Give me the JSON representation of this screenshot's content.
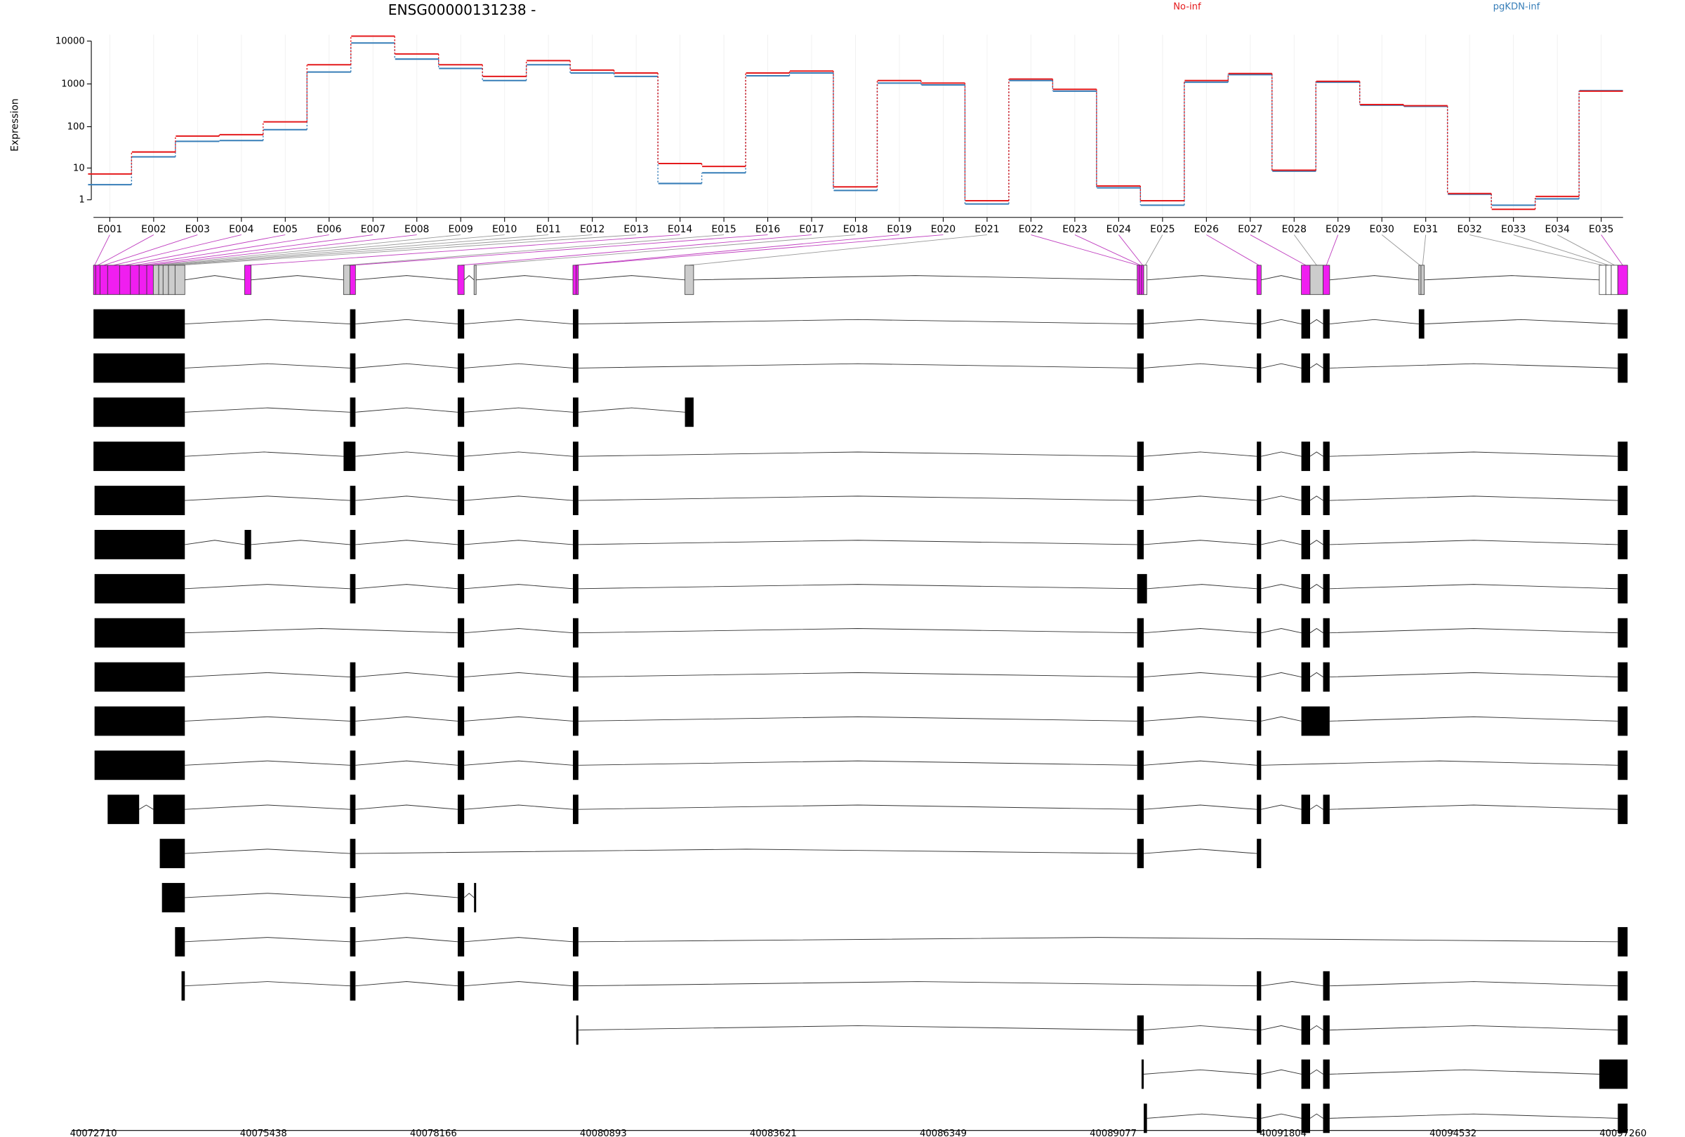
{
  "chart_data": [
    {
      "type": "line",
      "title": "ENSG00000131238 -",
      "ylabel": "Expression",
      "categories": [
        "E001",
        "E002",
        "E003",
        "E004",
        "E005",
        "E006",
        "E007",
        "E008",
        "E009",
        "E010",
        "E011",
        "E012",
        "E013",
        "E014",
        "E015",
        "E016",
        "E017",
        "E018",
        "E019",
        "E020",
        "E021",
        "E022",
        "E023",
        "E024",
        "E025",
        "E026",
        "E027",
        "E028",
        "E029",
        "E030",
        "E031",
        "E032",
        "E033",
        "E034",
        "E035"
      ],
      "series": [
        {
          "name": "No-inf",
          "color": "#e41a1c",
          "values": [
            7,
            25,
            60,
            65,
            130,
            2800,
            13000,
            5000,
            2800,
            1500,
            3500,
            2100,
            1800,
            13,
            11,
            1800,
            2000,
            3,
            1200,
            1050,
            0.9,
            1300,
            750,
            3.2,
            0.9,
            1200,
            1750,
            8.8,
            1150,
            330,
            310,
            1.8,
            0.2,
            1.4,
            680
          ]
        },
        {
          "name": "pgKDN-inf",
          "color": "#377eb8",
          "values": [
            3.5,
            19,
            45,
            47,
            85,
            1900,
            9000,
            3800,
            2300,
            1200,
            2800,
            1800,
            1500,
            3.8,
            7.5,
            1550,
            1800,
            2.3,
            1050,
            950,
            0.6,
            1200,
            680,
            2.8,
            0.5,
            1100,
            1650,
            8.3,
            1100,
            320,
            300,
            1.7,
            0.5,
            1.1,
            700
          ]
        }
      ],
      "ylim": [
        0,
        14000
      ],
      "yticks": [
        1,
        10,
        100,
        1000,
        10000
      ],
      "log": true,
      "log_offset": 1,
      "grid": true,
      "legend": "top"
    },
    {
      "type": "gene-model",
      "xlim": [
        40072710,
        40097260
      ],
      "xticks": [
        40072710,
        40075438,
        40078166,
        40080893,
        40083621,
        40086349,
        40089077,
        40091804,
        40094532,
        40097260
      ],
      "exons": [
        {
          "start": 40072710,
          "end": 40072745,
          "color": "#f01ef0"
        },
        {
          "start": 40072745,
          "end": 40072815,
          "color": "#f01ef0"
        },
        {
          "start": 40072815,
          "end": 40072937,
          "color": "#f01ef0"
        },
        {
          "start": 40072937,
          "end": 40073129,
          "color": "#f01ef0"
        },
        {
          "start": 40073129,
          "end": 40073303,
          "color": "#f01ef0"
        },
        {
          "start": 40073303,
          "end": 40073443,
          "color": "#f01ef0"
        },
        {
          "start": 40073443,
          "end": 40073565,
          "color": "#f01ef0"
        },
        {
          "start": 40073565,
          "end": 40073670,
          "color": "#f01ef0"
        },
        {
          "start": 40073670,
          "end": 40073757,
          "color": "#cccccc"
        },
        {
          "start": 40073757,
          "end": 40073827,
          "color": "#cccccc"
        },
        {
          "start": 40073827,
          "end": 40073914,
          "color": "#cccccc"
        },
        {
          "start": 40073914,
          "end": 40074019,
          "color": "#cccccc"
        },
        {
          "start": 40074019,
          "end": 40074176,
          "color": "#cccccc"
        },
        {
          "start": 40075136,
          "end": 40075240,
          "color": "#f01ef0"
        },
        {
          "start": 40076724,
          "end": 40076828,
          "color": "#cccccc"
        },
        {
          "start": 40076828,
          "end": 40076915,
          "color": "#f01ef0"
        },
        {
          "start": 40078556,
          "end": 40078660,
          "color": "#f01ef0"
        },
        {
          "start": 40078818,
          "end": 40078852,
          "color": "#cccccc"
        },
        {
          "start": 40080405,
          "end": 40080458,
          "color": "#f01ef0"
        },
        {
          "start": 40080458,
          "end": 40080493,
          "color": "#f01ef0"
        },
        {
          "start": 40082203,
          "end": 40082342,
          "color": "#cccccc"
        },
        {
          "start": 40089462,
          "end": 40089497,
          "color": "#f01ef0"
        },
        {
          "start": 40089497,
          "end": 40089532,
          "color": "#f01ef0"
        },
        {
          "start": 40089532,
          "end": 40089567,
          "color": "#f01ef0"
        },
        {
          "start": 40089567,
          "end": 40089619,
          "color": "#ffffff"
        },
        {
          "start": 40091382,
          "end": 40091452,
          "color": "#f01ef0"
        },
        {
          "start": 40092097,
          "end": 40092237,
          "color": "#f01ef0"
        },
        {
          "start": 40092237,
          "end": 40092446,
          "color": "#cccccc"
        },
        {
          "start": 40092446,
          "end": 40092551,
          "color": "#f01ef0"
        },
        {
          "start": 40093982,
          "end": 40094017,
          "color": "#cccccc"
        },
        {
          "start": 40094017,
          "end": 40094070,
          "color": "#cccccc"
        },
        {
          "start": 40096879,
          "end": 40096984,
          "color": "#ffffff"
        },
        {
          "start": 40096984,
          "end": 40097071,
          "color": "#ffffff"
        },
        {
          "start": 40097071,
          "end": 40097176,
          "color": "#ffffff"
        },
        {
          "start": 40097176,
          "end": 40097333,
          "color": "#f01ef0"
        }
      ],
      "transcript_color": "#000000",
      "transcripts": [
        [
          [
            40072710,
            40074176
          ],
          [
            40076828,
            40076915
          ],
          [
            40078556,
            40078660
          ],
          [
            40080405,
            40080493
          ],
          [
            40089462,
            40089567
          ],
          [
            40091382,
            40091452
          ],
          [
            40092097,
            40092237
          ],
          [
            40092446,
            40092551
          ],
          [
            40093982,
            40094070
          ],
          [
            40097176,
            40097333
          ]
        ],
        [
          [
            40072710,
            40074176
          ],
          [
            40076828,
            40076915
          ],
          [
            40078556,
            40078660
          ],
          [
            40080405,
            40080493
          ],
          [
            40089462,
            40089567
          ],
          [
            40091382,
            40091452
          ],
          [
            40092097,
            40092237
          ],
          [
            40092446,
            40092551
          ],
          [
            40097176,
            40097333
          ]
        ],
        [
          [
            40072710,
            40074176
          ],
          [
            40076828,
            40076915
          ],
          [
            40078556,
            40078660
          ],
          [
            40080405,
            40080493
          ],
          [
            40082203,
            40082342
          ]
        ],
        [
          [
            40072710,
            40074176
          ],
          [
            40076724,
            40076915
          ],
          [
            40078556,
            40078660
          ],
          [
            40080405,
            40080493
          ],
          [
            40089462,
            40089567
          ],
          [
            40091382,
            40091452
          ],
          [
            40092097,
            40092237
          ],
          [
            40092446,
            40092551
          ],
          [
            40097176,
            40097333
          ]
        ],
        [
          [
            40072727,
            40074176
          ],
          [
            40076828,
            40076915
          ],
          [
            40078556,
            40078660
          ],
          [
            40080405,
            40080493
          ],
          [
            40089462,
            40089567
          ],
          [
            40091382,
            40091452
          ],
          [
            40092097,
            40092237
          ],
          [
            40092446,
            40092551
          ],
          [
            40097176,
            40097333
          ]
        ],
        [
          [
            40072727,
            40074176
          ],
          [
            40075136,
            40075240
          ],
          [
            40076828,
            40076915
          ],
          [
            40078556,
            40078660
          ],
          [
            40080405,
            40080493
          ],
          [
            40089462,
            40089567
          ],
          [
            40091382,
            40091452
          ],
          [
            40092097,
            40092237
          ],
          [
            40092446,
            40092551
          ],
          [
            40097176,
            40097333
          ]
        ],
        [
          [
            40072727,
            40074176
          ],
          [
            40076828,
            40076915
          ],
          [
            40078556,
            40078660
          ],
          [
            40080405,
            40080493
          ],
          [
            40089462,
            40089619
          ],
          [
            40091382,
            40091452
          ],
          [
            40092097,
            40092237
          ],
          [
            40092446,
            40092551
          ],
          [
            40097176,
            40097333
          ]
        ],
        [
          [
            40072727,
            40074176
          ],
          [
            40078556,
            40078660
          ],
          [
            40080405,
            40080493
          ],
          [
            40089462,
            40089567
          ],
          [
            40091382,
            40091452
          ],
          [
            40092097,
            40092237
          ],
          [
            40092446,
            40092551
          ],
          [
            40097176,
            40097333
          ]
        ],
        [
          [
            40072727,
            40074176
          ],
          [
            40076828,
            40076915
          ],
          [
            40078556,
            40078660
          ],
          [
            40080405,
            40080493
          ],
          [
            40089462,
            40089567
          ],
          [
            40091382,
            40091452
          ],
          [
            40092097,
            40092237
          ],
          [
            40092446,
            40092551
          ],
          [
            40097176,
            40097333
          ]
        ],
        [
          [
            40072727,
            40074176
          ],
          [
            40076828,
            40076915
          ],
          [
            40078556,
            40078660
          ],
          [
            40080405,
            40080493
          ],
          [
            40089462,
            40089567
          ],
          [
            40091382,
            40091452
          ],
          [
            40092097,
            40092551
          ],
          [
            40097176,
            40097333
          ]
        ],
        [
          [
            40072727,
            40074176
          ],
          [
            40076828,
            40076915
          ],
          [
            40078556,
            40078660
          ],
          [
            40080405,
            40080493
          ],
          [
            40089462,
            40089567
          ],
          [
            40091382,
            40091452
          ],
          [
            40097176,
            40097333
          ]
        ],
        [
          [
            40072937,
            40073443
          ],
          [
            40073670,
            40074176
          ],
          [
            40076828,
            40076915
          ],
          [
            40078556,
            40078660
          ],
          [
            40080405,
            40080493
          ],
          [
            40089462,
            40089567
          ],
          [
            40091382,
            40091452
          ],
          [
            40092097,
            40092237
          ],
          [
            40092446,
            40092551
          ],
          [
            40097176,
            40097333
          ]
        ],
        [
          [
            40073774,
            40074176
          ],
          [
            40076828,
            40076915
          ],
          [
            40089462,
            40089567
          ],
          [
            40091382,
            40091452
          ]
        ],
        [
          [
            40073809,
            40074176
          ],
          [
            40076828,
            40076915
          ],
          [
            40078556,
            40078660
          ],
          [
            40078818,
            40078852
          ]
        ],
        [
          [
            40074019,
            40074176
          ],
          [
            40076828,
            40076915
          ],
          [
            40078556,
            40078660
          ],
          [
            40080405,
            40080493
          ],
          [
            40097176,
            40097333
          ]
        ],
        [
          [
            40074123,
            40074176
          ],
          [
            40076828,
            40076915
          ],
          [
            40078556,
            40078660
          ],
          [
            40080405,
            40080493
          ],
          [
            40091382,
            40091452
          ],
          [
            40092446,
            40092551
          ],
          [
            40097176,
            40097333
          ]
        ],
        [
          [
            40080458,
            40080493
          ],
          [
            40089462,
            40089567
          ],
          [
            40091382,
            40091452
          ],
          [
            40092097,
            40092237
          ],
          [
            40092446,
            40092551
          ],
          [
            40097176,
            40097333
          ]
        ],
        [
          [
            40089532,
            40089567
          ],
          [
            40091382,
            40091452
          ],
          [
            40092097,
            40092237
          ],
          [
            40092446,
            40092551
          ],
          [
            40096879,
            40097333
          ]
        ],
        [
          [
            40089567,
            40089619
          ],
          [
            40091382,
            40091452
          ],
          [
            40092097,
            40092237
          ],
          [
            40092446,
            40092551
          ],
          [
            40097176,
            40097333
          ]
        ]
      ]
    }
  ]
}
